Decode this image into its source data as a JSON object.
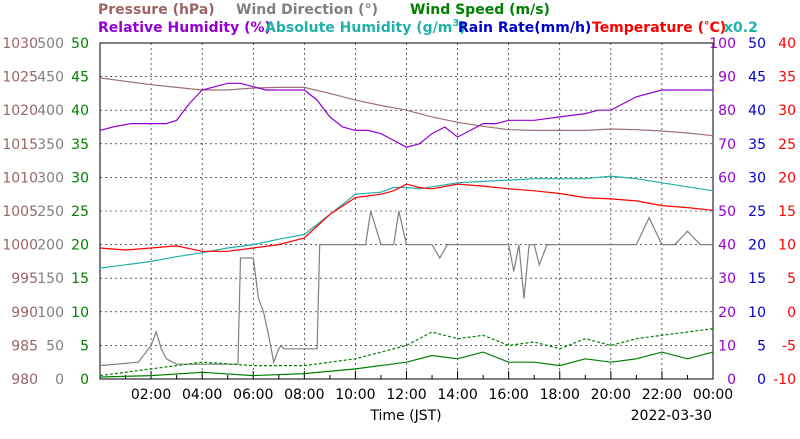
{
  "chart_data": {
    "type": "line",
    "xlabel": "Time (JST)",
    "date": "2022-03-30",
    "x_ticks": [
      "02:00",
      "04:00",
      "06:00",
      "08:00",
      "10:00",
      "12:00",
      "14:00",
      "16:00",
      "18:00",
      "20:00",
      "22:00",
      "00:00"
    ],
    "xlim_hours": [
      0,
      24
    ],
    "grid": true,
    "legend": {
      "pressure": "Pressure (hPa)",
      "wind_direction": "Wind Direction (°)",
      "wind_speed": "Wind Speed (m/s)",
      "relative_humidity": "Relative Humidity (%)",
      "absolute_humidity_prefix": "Absolute Humidity (g/m",
      "absolute_humidity_exp": "3",
      "absolute_humidity_suffix": ")",
      "rain_rate": "Rain Rate(mm/h)",
      "temperature_prefix": "Temperature (",
      "temperature_deg": "°",
      "temperature_suffix": "C)",
      "abs_humidity_scale": "x0.2"
    },
    "axes": {
      "pressure": {
        "ticks": [
          "980",
          "985",
          "990",
          "995",
          "1000",
          "1005",
          "1010",
          "1015",
          "1020",
          "1025",
          "1030"
        ],
        "ylim": [
          980,
          1030
        ],
        "color": "#9c6464"
      },
      "wind_direction": {
        "ticks": [
          "0",
          "50",
          "100",
          "150",
          "200",
          "250",
          "300",
          "350",
          "400",
          "450",
          "500"
        ],
        "ylim": [
          0,
          500
        ],
        "color": "#808080"
      },
      "wind_speed": {
        "ticks": [
          "0",
          "5",
          "10",
          "15",
          "20",
          "25",
          "30",
          "35",
          "40",
          "45",
          "50"
        ],
        "ylim": [
          0,
          50
        ],
        "color": "#008000"
      },
      "relative_humidity": {
        "ticks": [
          "0",
          "10",
          "20",
          "30",
          "40",
          "50",
          "60",
          "70",
          "80",
          "90",
          "100"
        ],
        "ylim": [
          0,
          100
        ],
        "color": "#9400d3"
      },
      "rain_rate": {
        "ticks": [
          "0",
          "5",
          "10",
          "15",
          "20",
          "25",
          "30",
          "35",
          "40",
          "45",
          "50"
        ],
        "ylim": [
          0,
          50
        ],
        "color": "#0000cd"
      },
      "temperature": {
        "ticks": [
          "-10",
          "-5",
          "0",
          "5",
          "10",
          "15",
          "20",
          "25",
          "30",
          "35",
          "40"
        ],
        "ylim": [
          -10,
          40
        ],
        "color": "#ff0000"
      }
    },
    "series": [
      {
        "name": "Pressure (hPa)",
        "axis": "pressure",
        "color": "#a07070",
        "x": [
          0,
          1,
          2,
          3,
          4,
          5,
          6,
          7,
          8,
          9,
          10,
          11,
          12,
          13,
          14,
          15,
          16,
          17,
          18,
          19,
          20,
          21,
          22,
          23,
          24
        ],
        "y": [
          1024.8,
          1024.3,
          1023.8,
          1023.4,
          1023.0,
          1023.0,
          1023.3,
          1023.4,
          1023.4,
          1022.5,
          1021.5,
          1020.7,
          1020.0,
          1019.0,
          1018.2,
          1017.6,
          1017.1,
          1017.0,
          1017.0,
          1017.0,
          1017.2,
          1017.1,
          1016.9,
          1016.6,
          1016.2
        ]
      },
      {
        "name": "Relative Humidity (%)",
        "axis": "relative_humidity",
        "color": "#9400d3",
        "x": [
          0,
          0.5,
          1.2,
          2.0,
          2.6,
          3.0,
          3.5,
          4.0,
          4.5,
          5.0,
          5.5,
          6.0,
          6.5,
          7.0,
          7.5,
          8.0,
          8.5,
          9.0,
          9.5,
          10.0,
          10.5,
          11.0,
          11.5,
          12.0,
          12.5,
          13.0,
          13.5,
          14.0,
          14.5,
          15.0,
          15.5,
          16.0,
          17.0,
          18.0,
          19.0,
          19.5,
          20.0,
          21.0,
          22.0,
          23.0,
          24.0
        ],
        "y": [
          74,
          75,
          76,
          76,
          76,
          77,
          82,
          86,
          87,
          88,
          88,
          87,
          86,
          86,
          86,
          86,
          83,
          78,
          75,
          74,
          74,
          73,
          71,
          69,
          70,
          73,
          75,
          72,
          74,
          76,
          76,
          77,
          77,
          78,
          79,
          80,
          80,
          84,
          86,
          86,
          86
        ]
      },
      {
        "name": "Absolute Humidity (g/m3) x0.2",
        "axis": "temperature",
        "color": "#20b2aa",
        "x": [
          0,
          1,
          2,
          3,
          4,
          5,
          6,
          7,
          8,
          9,
          10,
          11,
          11.5,
          12,
          12.5,
          13,
          14,
          15,
          16,
          17,
          18,
          19,
          20,
          21,
          22,
          23,
          24
        ],
        "y": [
          6.5,
          7.0,
          7.5,
          8.2,
          8.8,
          9.5,
          10.0,
          10.8,
          11.5,
          14.5,
          17.5,
          17.8,
          18.5,
          18.5,
          18.3,
          18.6,
          19.2,
          19.4,
          19.6,
          19.8,
          19.8,
          19.8,
          20.2,
          19.8,
          19.2,
          18.6,
          18.0
        ]
      },
      {
        "name": "Temperature (°C)",
        "axis": "temperature",
        "color": "#ff0000",
        "x": [
          0,
          1,
          2,
          3,
          4,
          5,
          6,
          7,
          8,
          9,
          10,
          11,
          11.5,
          12,
          12.5,
          13,
          14,
          15,
          16,
          17,
          18,
          19,
          20,
          21,
          22,
          23,
          24
        ],
        "y": [
          9.5,
          9.2,
          9.5,
          9.8,
          9.0,
          9.0,
          9.5,
          10.0,
          11.0,
          14.5,
          17.0,
          17.5,
          18.0,
          19.0,
          18.5,
          18.3,
          19.0,
          18.7,
          18.3,
          18.0,
          17.6,
          17.0,
          16.8,
          16.5,
          15.8,
          15.5,
          15.1
        ]
      },
      {
        "name": "Wind Direction (°)",
        "axis": "wind_direction",
        "color": "#808080",
        "x": [
          0,
          1.5,
          2.0,
          2.2,
          2.4,
          2.6,
          3.0,
          4.0,
          5.0,
          5.4,
          5.5,
          6.0,
          6.2,
          6.4,
          6.6,
          6.8,
          7.0,
          7.1,
          7.2,
          7.5,
          8.0,
          8.5,
          8.6,
          9.0,
          9.5,
          10.0,
          10.4,
          10.6,
          11.0,
          11.5,
          11.7,
          12.0,
          13.0,
          13.3,
          13.6,
          14.0,
          14.5,
          15.0,
          15.5,
          16.0,
          16.2,
          16.4,
          16.6,
          16.8,
          17.0,
          17.2,
          17.5,
          18.0,
          19.0,
          20.0,
          20.5,
          21.0,
          21.5,
          22.0,
          22.5,
          23.0,
          23.5,
          24.0
        ],
        "y": [
          20,
          25,
          50,
          70,
          45,
          30,
          22,
          22,
          22,
          22,
          180,
          180,
          120,
          100,
          65,
          25,
          45,
          50,
          45,
          45,
          45,
          45,
          200,
          200,
          200,
          200,
          200,
          250,
          200,
          200,
          250,
          200,
          200,
          180,
          200,
          200,
          200,
          200,
          200,
          200,
          160,
          200,
          120,
          200,
          200,
          170,
          200,
          200,
          200,
          200,
          200,
          200,
          240,
          200,
          200,
          220,
          200,
          200
        ]
      },
      {
        "name": "Wind Speed (m/s)",
        "axis": "wind_speed",
        "color": "#008000",
        "x": [
          0,
          2,
          4,
          6,
          8,
          10,
          12,
          13,
          14,
          15,
          16,
          17,
          18,
          19,
          20,
          21,
          22,
          23,
          24
        ],
        "y": [
          0.3,
          0.5,
          1.0,
          0.5,
          0.8,
          1.5,
          2.5,
          3.5,
          3.0,
          4.0,
          2.5,
          2.5,
          2.0,
          3.0,
          2.5,
          3.0,
          4.0,
          3.0,
          4.0
        ]
      },
      {
        "name": "Wind Speed gust (m/s)",
        "axis": "wind_speed",
        "color": "#008000",
        "x": [
          0,
          2,
          4,
          6,
          8,
          10,
          11,
          12,
          13,
          14,
          15,
          16,
          17,
          18,
          19,
          20,
          21,
          22,
          23,
          24
        ],
        "y": [
          0.5,
          1.5,
          2.5,
          2.0,
          2.0,
          3.0,
          4.0,
          5.0,
          7.0,
          6.0,
          6.5,
          5.0,
          5.5,
          4.5,
          6.0,
          5.0,
          6.0,
          6.5,
          7.0,
          7.5
        ]
      }
    ]
  }
}
